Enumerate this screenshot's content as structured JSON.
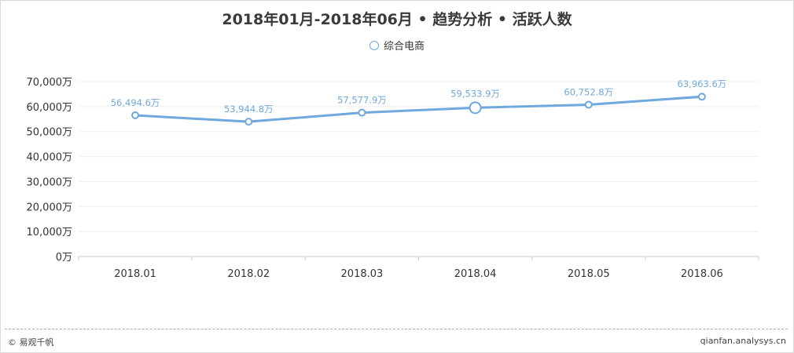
{
  "title": "2018年01月-2018年06月 • 趋势分析 • 活跃人数",
  "legend": {
    "label": "综合电商",
    "color": "#6fa8dc"
  },
  "footer": {
    "left": "© 易观千帆",
    "right": "qianfan.analysys.cn"
  },
  "chart_data": {
    "type": "line",
    "title": "2018年01月-2018年06月 • 趋势分析 • 活跃人数",
    "categories": [
      "2018.01",
      "2018.02",
      "2018.03",
      "2018.04",
      "2018.05",
      "2018.06"
    ],
    "series": [
      {
        "name": "综合电商",
        "values": [
          56494.6,
          53944.8,
          57577.9,
          59533.9,
          60752.8,
          63963.6
        ],
        "labels": [
          "56,494.6万",
          "53,944.8万",
          "57,577.9万",
          "59,533.9万",
          "60,752.8万",
          "63,963.6万"
        ]
      }
    ],
    "yticks": [
      "0万",
      "10,000万",
      "20,000万",
      "30,000万",
      "40,000万",
      "50,000万",
      "60,000万",
      "70,000万"
    ],
    "ylim": [
      0,
      70000
    ],
    "highlighted_index": 3,
    "grid": true,
    "legend_position": "top-center",
    "line_color": "#6fa8dc"
  }
}
